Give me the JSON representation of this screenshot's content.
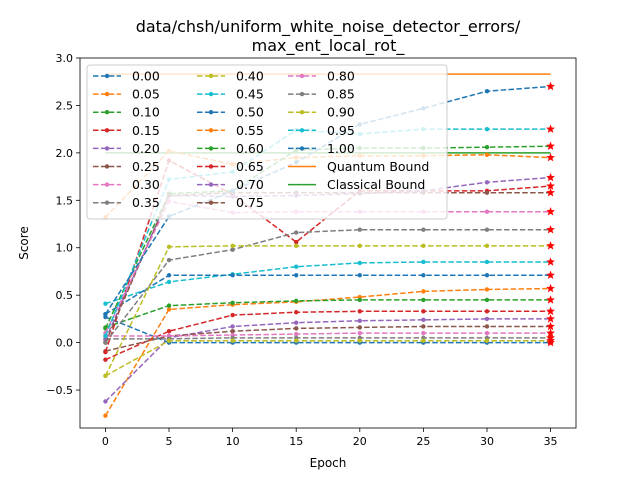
{
  "chart_data": {
    "type": "line",
    "title_lines": [
      "data/chsh/uniform_white_noise_detector_errors/",
      "max_ent_local_rot_"
    ],
    "xlabel": "Epoch",
    "ylabel": "Score",
    "xlim": [
      -2,
      37
    ],
    "ylim": [
      -0.9,
      3.0
    ],
    "xticks": [
      0,
      5,
      10,
      15,
      20,
      25,
      30,
      35
    ],
    "yticks": [
      -0.5,
      0.0,
      0.5,
      1.0,
      1.5,
      2.0,
      2.5,
      3.0
    ],
    "ytick_labels": [
      "−0.5",
      "0.0",
      "0.5",
      "1.0",
      "1.5",
      "2.0",
      "2.5",
      "3.0"
    ],
    "grid": false,
    "legend_position": "upper-left",
    "legend_columns": 3,
    "x": [
      0,
      5,
      10,
      15,
      20,
      25,
      30,
      35
    ],
    "series": [
      {
        "name": "0.00",
        "color": "#1f77b4",
        "values": [
          0.27,
          0.0,
          0.0,
          0.0,
          0.0,
          0.0,
          0.0,
          0.0
        ]
      },
      {
        "name": "0.05",
        "color": "#ff7f0e",
        "values": [
          -0.77,
          0.35,
          0.4,
          0.43,
          0.48,
          0.54,
          0.56,
          0.57
        ]
      },
      {
        "name": "0.10",
        "color": "#2ca02c",
        "values": [
          0.16,
          0.39,
          0.42,
          0.44,
          0.45,
          0.45,
          0.45,
          0.45
        ]
      },
      {
        "name": "0.15",
        "color": "#d62728",
        "values": [
          -0.18,
          0.12,
          0.29,
          0.32,
          0.33,
          0.33,
          0.33,
          0.33
        ]
      },
      {
        "name": "0.20",
        "color": "#9467bd",
        "values": [
          -0.62,
          0.05,
          0.17,
          0.21,
          0.23,
          0.24,
          0.25,
          0.25
        ]
      },
      {
        "name": "0.25",
        "color": "#8c564b",
        "values": [
          -0.09,
          0.07,
          0.12,
          0.15,
          0.16,
          0.17,
          0.17,
          0.17
        ]
      },
      {
        "name": "0.30",
        "color": "#e377c2",
        "values": [
          0.07,
          0.07,
          0.08,
          0.09,
          0.1,
          0.1,
          0.1,
          0.1
        ]
      },
      {
        "name": "0.35",
        "color": "#7f7f7f",
        "values": [
          0.04,
          0.04,
          0.05,
          0.05,
          0.05,
          0.05,
          0.05,
          0.05
        ]
      },
      {
        "name": "0.40",
        "color": "#bcbd22",
        "values": [
          -0.35,
          0.02,
          0.02,
          0.02,
          0.02,
          0.02,
          0.02,
          0.02
        ]
      },
      {
        "name": "0.45",
        "color": "#17becf",
        "values": [
          0.41,
          0.64,
          0.72,
          0.8,
          0.84,
          0.85,
          0.85,
          0.85
        ]
      },
      {
        "name": "0.50",
        "color": "#1f77b4",
        "values": [
          0.3,
          0.71,
          0.71,
          0.71,
          0.71,
          0.71,
          0.71,
          0.71
        ]
      },
      {
        "name": "0.55",
        "color": "#ff7f0e",
        "values": [
          1.32,
          2.02,
          1.88,
          1.95,
          1.97,
          1.97,
          1.98,
          1.95
        ]
      },
      {
        "name": "0.60",
        "color": "#2ca02c",
        "values": [
          0.15,
          1.57,
          1.6,
          2.03,
          2.05,
          2.05,
          2.06,
          2.07
        ]
      },
      {
        "name": "0.65",
        "color": "#d62728",
        "values": [
          -0.1,
          1.92,
          1.56,
          1.06,
          1.6,
          1.6,
          1.6,
          1.65
        ]
      },
      {
        "name": "0.70",
        "color": "#9467bd",
        "values": [
          0.03,
          1.55,
          1.54,
          1.55,
          1.57,
          1.6,
          1.69,
          1.74
        ]
      },
      {
        "name": "0.75",
        "color": "#8c564b",
        "values": [
          0.0,
          1.55,
          1.58,
          1.58,
          1.58,
          1.58,
          1.58,
          1.58
        ]
      },
      {
        "name": "0.80",
        "color": "#e377c2",
        "values": [
          0.1,
          1.49,
          1.37,
          1.38,
          1.38,
          1.38,
          1.38,
          1.38
        ]
      },
      {
        "name": "0.85",
        "color": "#7f7f7f",
        "values": [
          0.0,
          0.87,
          0.98,
          1.16,
          1.19,
          1.19,
          1.19,
          1.19
        ]
      },
      {
        "name": "0.90",
        "color": "#bcbd22",
        "values": [
          -0.35,
          1.01,
          1.02,
          1.02,
          1.02,
          1.02,
          1.02,
          1.02
        ]
      },
      {
        "name": "0.95",
        "color": "#17becf",
        "values": [
          0.07,
          1.72,
          1.8,
          2.24,
          2.2,
          2.25,
          2.25,
          2.25
        ]
      },
      {
        "name": "1.00",
        "color": "#1f77b4",
        "values": [
          0.3,
          1.33,
          1.6,
          1.9,
          2.3,
          2.47,
          2.65,
          2.7
        ]
      },
      {
        "name": "Quantum Bound",
        "color": "#ff7f0e",
        "constant": 2.83
      },
      {
        "name": "Classical Bound",
        "color": "#2ca02c",
        "constant": 2.0
      }
    ]
  }
}
